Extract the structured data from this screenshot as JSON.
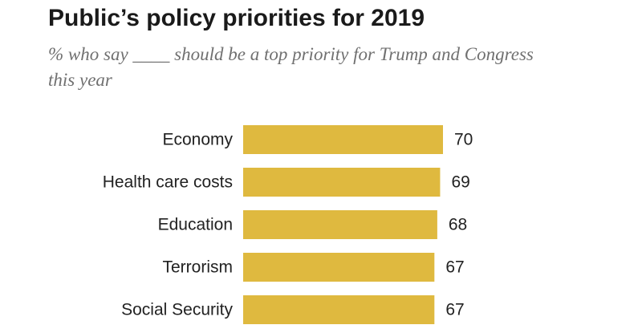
{
  "chart_data": {
    "type": "bar",
    "orientation": "horizontal",
    "title": "Public’s policy priorities for 2019",
    "subtitle": "% who say ____ should be a top priority for Trump and Congress this year",
    "categories": [
      "Economy",
      "Health care costs",
      "Education",
      "Terrorism",
      "Social Security"
    ],
    "values": [
      70,
      69,
      68,
      67,
      67
    ],
    "xlim": [
      0,
      70
    ],
    "grid": false,
    "legend": "none",
    "bar_color": "#DFB93F"
  }
}
